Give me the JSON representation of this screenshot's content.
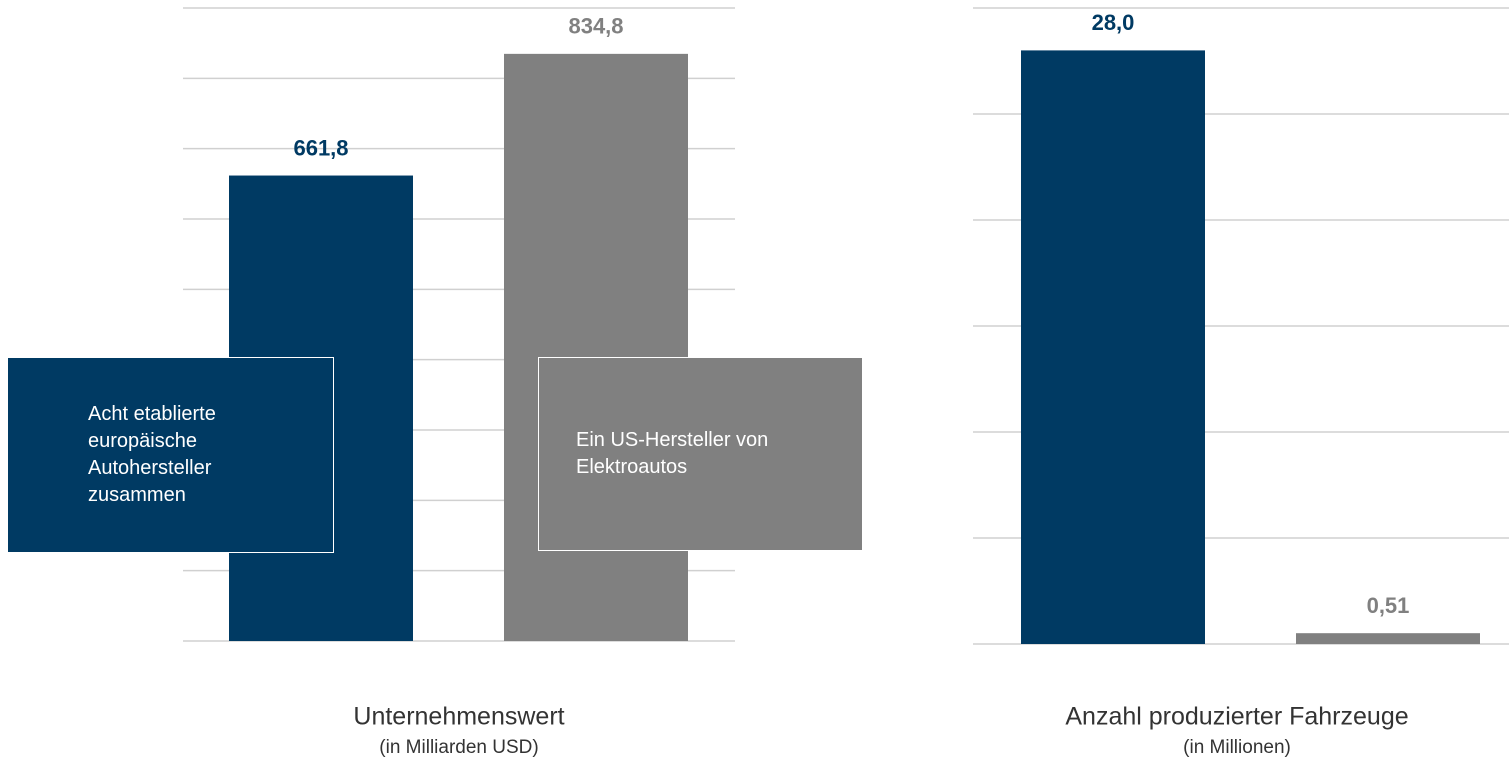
{
  "chart_data": [
    {
      "type": "bar",
      "title": "Unternehmenswert",
      "subtitle": "(in Milliarden USD)",
      "categories": [
        "Acht etablierte europäische Autohersteller zusammen",
        "Ein US-Hersteller von Elektroautos"
      ],
      "values": [
        661.8,
        834.8
      ],
      "value_labels": [
        "661,8",
        "834,8"
      ],
      "colors": [
        "#003a63",
        "#808080"
      ],
      "ylim": [
        0,
        900
      ],
      "yticks": [
        0,
        100,
        200,
        300,
        400,
        500,
        600,
        700,
        800,
        900
      ],
      "grid": true
    },
    {
      "type": "bar",
      "title": "Anzahl produzierter Fahrzeuge",
      "subtitle": "(in Millionen)",
      "values": [
        28.0,
        0.51
      ],
      "value_labels": [
        "28,0",
        "0,51"
      ],
      "colors": [
        "#003a63",
        "#808080"
      ],
      "ylim": [
        0,
        30
      ],
      "yticks": [
        0,
        5,
        10,
        15,
        20,
        25,
        30
      ],
      "grid": true
    }
  ]
}
